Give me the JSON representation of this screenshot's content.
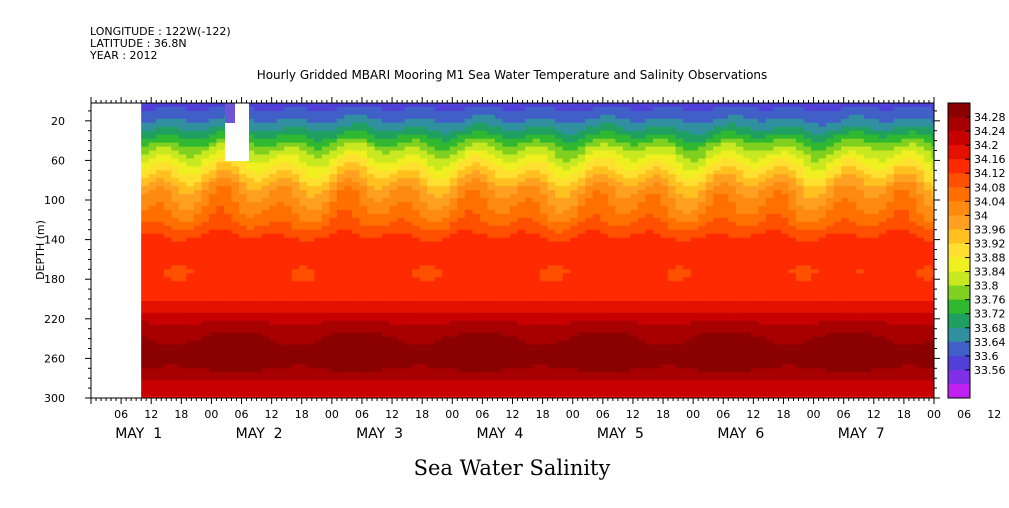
{
  "header": {
    "longitude": "LONGITUDE : 122W(-122)",
    "latitude": "LATITUDE : 36.8N",
    "year": "YEAR : 2012",
    "title": "Hourly Gridded MBARI Mooring M1 Sea Water Temperature and Salinity Observations"
  },
  "footer": {
    "title": "Sea Water Salinity"
  },
  "chart_data": {
    "type": "heatmap",
    "ylabel": "DEPTH (m)",
    "xlabel": "",
    "ylim": [
      300,
      0
    ],
    "y_ticks": [
      20,
      60,
      100,
      140,
      180,
      220,
      260,
      300
    ],
    "x_tick_labels": [
      "06",
      "12",
      "18",
      "00",
      "06",
      "12",
      "18",
      "00",
      "06",
      "12",
      "18",
      "00",
      "06",
      "12",
      "18",
      "00",
      "06",
      "12",
      "18",
      "00",
      "06",
      "12",
      "18",
      "00",
      "06",
      "12",
      "18",
      "00",
      "06",
      "12",
      "18",
      "00"
    ],
    "day_labels": [
      "MAY  1",
      "MAY  2",
      "MAY  3",
      "MAY  4",
      "MAY  5",
      "MAY  6",
      "MAY  7"
    ],
    "time_range_hours": [
      0,
      168
    ],
    "data_start_hour": 10,
    "colorbar": {
      "labels": [
        "34.28",
        "34.24",
        "34.2",
        "34.16",
        "34.12",
        "34.08",
        "34.04",
        "34",
        "33.96",
        "33.92",
        "33.88",
        "33.84",
        "33.8",
        "33.76",
        "33.72",
        "33.68",
        "33.64",
        "33.6",
        "33.56"
      ],
      "colors": [
        "#8b0000",
        "#a80000",
        "#c80000",
        "#e41000",
        "#ff2a00",
        "#ff5000",
        "#ff7000",
        "#ff8a10",
        "#ffa020",
        "#ffc020",
        "#ffe030",
        "#f0f020",
        "#c8e820",
        "#80d020",
        "#30b830",
        "#20a060",
        "#3090a0",
        "#4060c8",
        "#5040d8",
        "#8030e8",
        "#c020f0"
      ],
      "min": 33.56,
      "max": 34.28
    },
    "profile": {
      "depths": [
        0,
        10,
        20,
        30,
        40,
        50,
        60,
        70,
        80,
        90,
        100,
        110,
        120,
        130,
        140,
        150,
        160,
        170,
        180,
        190,
        200,
        210,
        220,
        230,
        240,
        250,
        260,
        270,
        280,
        290,
        300
      ],
      "salinity": [
        33.64,
        33.67,
        33.7,
        33.74,
        33.79,
        33.84,
        33.88,
        33.92,
        33.96,
        34.0,
        34.02,
        34.04,
        34.06,
        34.09,
        34.12,
        34.13,
        34.12,
        34.11,
        34.11,
        34.12,
        34.14,
        34.17,
        34.2,
        34.23,
        34.25,
        34.27,
        34.27,
        34.25,
        34.22,
        34.19,
        34.17
      ]
    }
  }
}
